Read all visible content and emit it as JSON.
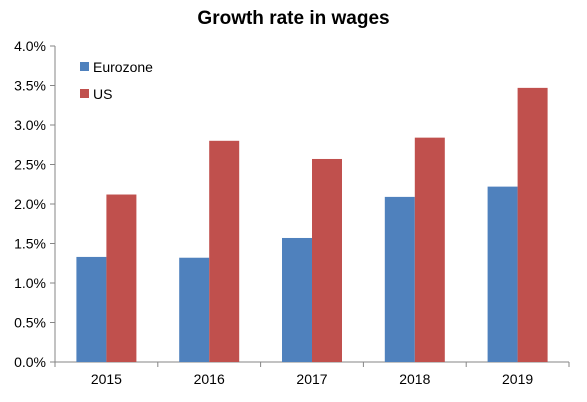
{
  "chart_data": {
    "type": "bar",
    "title": "Growth rate in wages",
    "categories": [
      "2015",
      "2016",
      "2017",
      "2018",
      "2019"
    ],
    "series": [
      {
        "name": "Eurozone",
        "color": "#4f81bd",
        "values": [
          1.33,
          1.32,
          1.57,
          2.09,
          2.22
        ]
      },
      {
        "name": "US",
        "color": "#c0504d",
        "values": [
          2.12,
          2.8,
          2.57,
          2.84,
          3.47
        ]
      }
    ],
    "ylim": [
      0,
      4.0
    ],
    "yticks": [
      "0.0%",
      "0.5%",
      "1.0%",
      "1.5%",
      "2.0%",
      "2.5%",
      "3.0%",
      "3.5%",
      "4.0%"
    ],
    "xlabel": "",
    "ylabel": "",
    "grid": false,
    "legend_position": "top-left"
  }
}
